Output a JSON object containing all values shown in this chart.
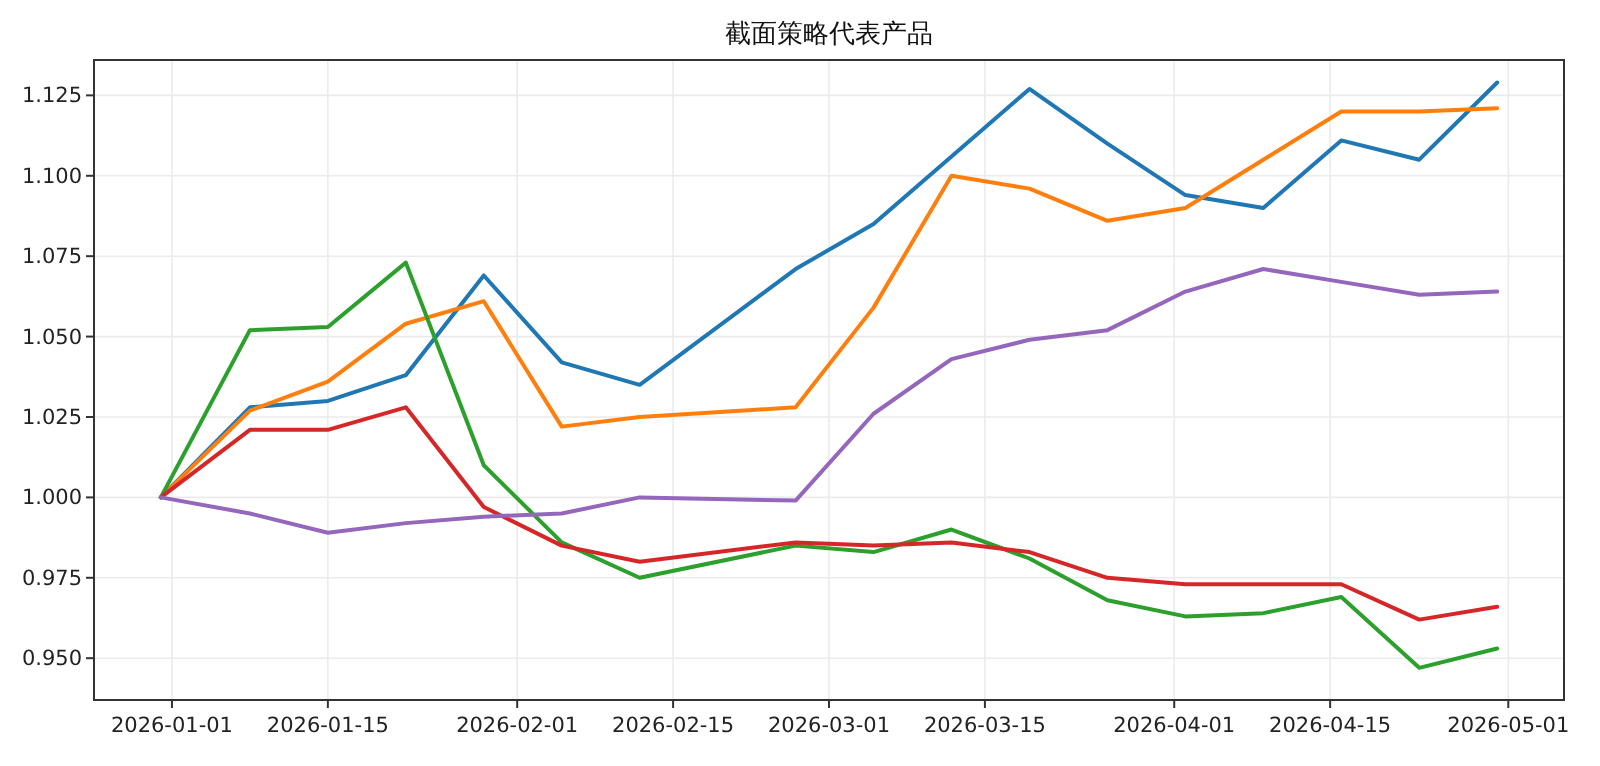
{
  "chart_data": {
    "type": "line",
    "title": "截面策略代表产品",
    "x": [
      "2025-12-31",
      "2026-01-08",
      "2026-01-15",
      "2026-01-22",
      "2026-01-29",
      "2026-02-05",
      "2026-02-12",
      "2026-02-26",
      "2026-03-05",
      "2026-03-12",
      "2026-03-19",
      "2026-03-26",
      "2026-04-02",
      "2026-04-09",
      "2026-04-16",
      "2026-04-23",
      "2026-04-30"
    ],
    "series": [
      {
        "color": "#1f77b4",
        "values": [
          1.0,
          1.028,
          1.03,
          1.038,
          1.069,
          1.042,
          1.035,
          1.071,
          1.085,
          1.106,
          1.127,
          1.11,
          1.094,
          1.09,
          1.111,
          1.105,
          1.129
        ]
      },
      {
        "color": "#ff7f0e",
        "values": [
          1.0,
          1.027,
          1.036,
          1.054,
          1.061,
          1.022,
          1.025,
          1.028,
          1.059,
          1.1,
          1.096,
          1.086,
          1.09,
          1.105,
          1.12,
          1.12,
          1.121
        ]
      },
      {
        "color": "#2ca02c",
        "values": [
          1.0,
          1.052,
          1.053,
          1.073,
          1.01,
          0.986,
          0.975,
          0.985,
          0.983,
          0.99,
          0.981,
          0.968,
          0.963,
          0.964,
          0.969,
          0.947,
          0.953
        ]
      },
      {
        "color": "#d62728",
        "values": [
          1.0,
          1.021,
          1.021,
          1.028,
          0.997,
          0.985,
          0.98,
          0.986,
          0.985,
          0.986,
          0.983,
          0.975,
          0.973,
          0.973,
          0.973,
          0.962,
          0.966
        ]
      },
      {
        "color": "#9467bd",
        "values": [
          1.0,
          0.995,
          0.989,
          0.992,
          0.994,
          0.995,
          1.0,
          0.999,
          1.026,
          1.043,
          1.049,
          1.052,
          1.064,
          1.071,
          1.067,
          1.063,
          1.064
        ]
      }
    ],
    "xlim": [
      "2025-12-25",
      "2026-05-06"
    ],
    "ylim": [
      0.937,
      1.136
    ],
    "xticks": [
      "2026-01-01",
      "2026-01-15",
      "2026-02-01",
      "2026-02-15",
      "2026-03-01",
      "2026-03-15",
      "2026-04-01",
      "2026-04-15",
      "2026-05-01"
    ],
    "yticks": [
      {
        "value": 0.95,
        "label": "0.950"
      },
      {
        "value": 0.975,
        "label": "0.975"
      },
      {
        "value": 1.0,
        "label": "1.000"
      },
      {
        "value": 1.025,
        "label": "1.025"
      },
      {
        "value": 1.05,
        "label": "1.050"
      },
      {
        "value": 1.075,
        "label": "1.075"
      },
      {
        "value": 1.1,
        "label": "1.100"
      },
      {
        "value": 1.125,
        "label": "1.125"
      }
    ],
    "grid": true,
    "marker": "none",
    "line_style": "solid"
  }
}
